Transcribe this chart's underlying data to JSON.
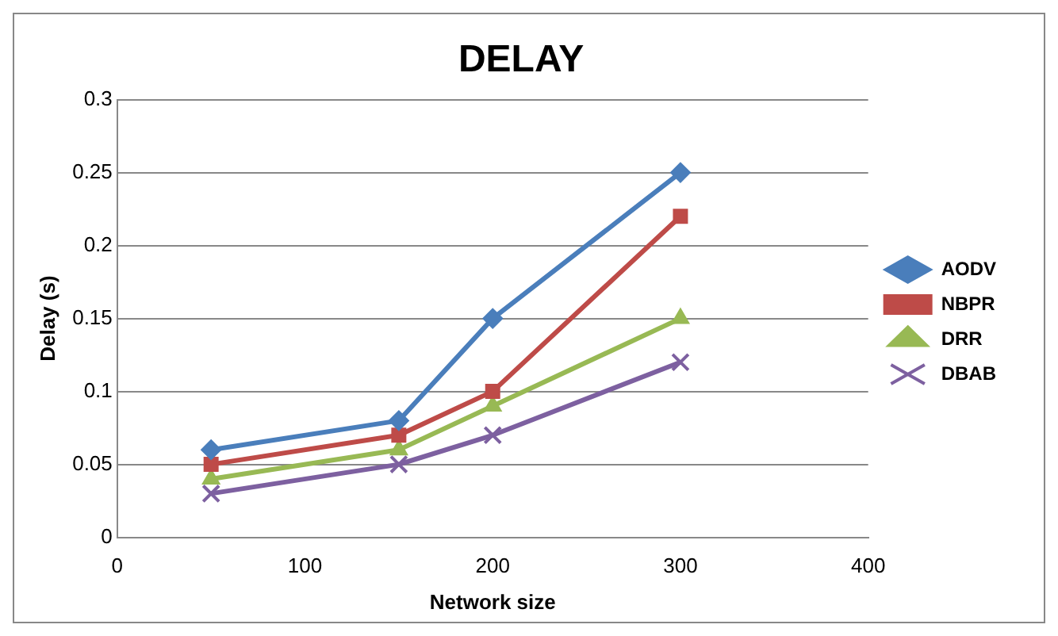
{
  "chart_data": {
    "type": "line",
    "title": "DELAY",
    "xlabel": "Network size",
    "ylabel": "Delay (s)",
    "x": [
      50,
      150,
      200,
      300
    ],
    "series": [
      {
        "name": "AODV",
        "color": "#4a7ebb",
        "marker": "diamond",
        "values": [
          0.06,
          0.08,
          0.15,
          0.25
        ]
      },
      {
        "name": "NBPR",
        "color": "#be4b48",
        "marker": "square",
        "values": [
          0.05,
          0.07,
          0.1,
          0.22
        ]
      },
      {
        "name": "DRR",
        "color": "#98b954",
        "marker": "triangle",
        "values": [
          0.04,
          0.06,
          0.09,
          0.15
        ]
      },
      {
        "name": "DBAB",
        "color": "#7d60a0",
        "marker": "cross",
        "values": [
          0.03,
          0.05,
          0.07,
          0.12
        ]
      }
    ],
    "xlim": [
      0,
      400
    ],
    "xticks": [
      0,
      100,
      200,
      300,
      400
    ],
    "ylim": [
      0,
      0.3
    ],
    "yticks": [
      0,
      0.05,
      0.1,
      0.15,
      0.2,
      0.25,
      0.3
    ],
    "grid": "y",
    "legend": "right",
    "line_style": "solid"
  }
}
